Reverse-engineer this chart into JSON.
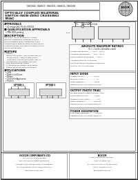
{
  "title_part_numbers": "IS6004, IS6007, IS6010, IS6015, IS6030",
  "title_line1": "OPTICALLY COUPLED BILATERAL",
  "title_line2": "SWITCH (NON-ZERO CROSSING)",
  "title_line3": "TRIAC",
  "bg_color": "#ffffff",
  "approvals_title": "APPROVALS",
  "approvals_item": "UL recognized, File No. E97253",
  "qualification_title": "QUALIFICATION APPROVALS",
  "qualification_item": "PPM: 8000 pending",
  "description_title": "DESCRIPTION",
  "feature_title": "FEATURE",
  "applications_title": "APPLICATIONS",
  "applications_items": [
    "CRTs",
    "Power Line Drives",
    "Motors",
    "Consumer Appliances",
    "Printers"
  ],
  "abs_max_title": "ABSOLUTE MAXIMUM RATINGS",
  "abs_max_subtitle": "(Tc = 1 unless otherwise stated)",
  "abs_max_items": [
    "Storage Temperature........-40°C ~ 150°C",
    "Operating Temperature......-40°C ~ 85°C",
    "Lead Soldering Temperature.......260°C",
    "(.Soldering time for 10 seconds)",
    "600V Peak Reverse Blocking Voltage (Min,",
    "5ms Rrp, 200 Hz, max dv/dt)"
  ],
  "input_diode_title": "INPUT DIODE",
  "input_diode_items": [
    "Forward Current....................60mA",
    "Blocking Voltage........................3V",
    "Power Dissipation..................75mW",
    "Lifetime Rated 1.5 x IFRMS above IF1"
  ],
  "output_photo_title": "OUTPUT PHOTO TRIAC",
  "output_photo_items": [
    "Off State Output Terminal Voltage...600V",
    "RMS Forward Current..............60mA",
    "Forward Current (Peak)..............1.2A",
    "Power Dissipation..................300mW",
    "Lifetime Rated 1.5XIFTRMS above IT1"
  ],
  "power_title": "POWER DISSIPATION",
  "power_items": [
    "Total Power Dissipation...........110mW",
    "Lifetime Rated 1.5XIFTRMS above IT1"
  ],
  "option1_label": "OPTION 1",
  "option1_sub": "SINGLE DEVICE",
  "option2_label": "OPTION 2",
  "option2_sub": "1-1-5",
  "company_left_name": "ISOCOM COMPONENTS LTD",
  "company_left_lines": [
    "Unit 19/9, Park View Road West,",
    "Park View Industrial Estate, Brenda Road",
    "Hartlepool, TS25 1NN England Tel: (01429)863609",
    "Fax: (01429)863581 e-mail: sales@isocom.co.uk",
    "http://www.isocom.co.uk"
  ],
  "company_right_name": "ISOCOM",
  "company_right_lines": [
    "9601 N. Lamar Blvd, Suite 103,",
    "Austin, TX 78753 / USA",
    "Tel (1-800)-477-3 Fax: (1-512)-835-6080",
    "e-mail: info@isocom.com",
    "http://www.isocom.com"
  ]
}
